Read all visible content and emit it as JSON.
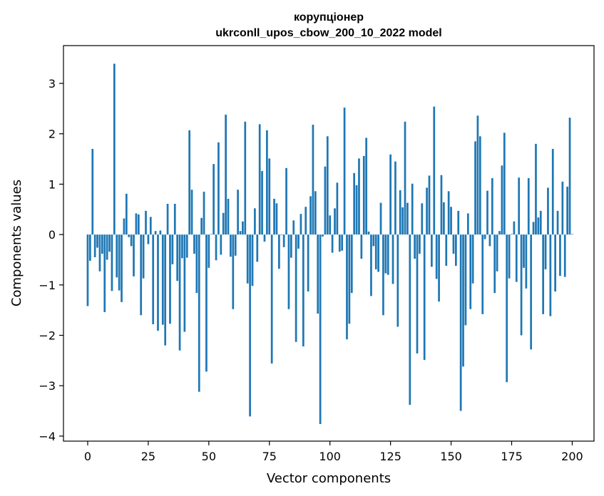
{
  "chart_data": {
    "type": "bar",
    "title": "корупціонер",
    "subtitle": "ukrconll_upos_cbow_200_10_2022 model",
    "xlabel": "Vector components",
    "ylabel": "Components values",
    "xlim": [
      -10,
      209
    ],
    "ylim": [
      -4.1,
      3.75
    ],
    "xticks": [
      0,
      25,
      50,
      75,
      100,
      125,
      150,
      175,
      200
    ],
    "yticks": [
      -4,
      -3,
      -2,
      -1,
      0,
      1,
      2,
      3
    ],
    "xtick_labels": [
      "0",
      "25",
      "50",
      "75",
      "100",
      "125",
      "150",
      "175",
      "200"
    ],
    "ytick_labels": [
      "−4",
      "−3",
      "−2",
      "−1",
      "0",
      "1",
      "2",
      "3"
    ],
    "bar_color": "#1f77b4",
    "grid": false,
    "values": [
      -1.42,
      -0.52,
      1.7,
      -0.45,
      -0.26,
      -0.73,
      -0.38,
      -1.54,
      -0.5,
      -0.34,
      -1.12,
      3.39,
      -0.85,
      -1.11,
      -1.34,
      0.32,
      0.81,
      -0.05,
      -0.23,
      -0.83,
      0.42,
      0.4,
      -1.6,
      -0.87,
      0.47,
      -0.19,
      0.35,
      -1.78,
      0.07,
      -1.91,
      0.08,
      -1.79,
      -2.2,
      0.61,
      -1.77,
      -0.59,
      0.61,
      -0.92,
      -2.3,
      -0.47,
      -1.93,
      -0.46,
      2.07,
      0.89,
      -0.38,
      -1.16,
      -3.12,
      0.33,
      0.85,
      -2.72,
      -0.66,
      0.01,
      1.4,
      -0.51,
      1.83,
      -0.4,
      0.43,
      2.38,
      0.71,
      -0.44,
      -1.48,
      -0.42,
      0.89,
      0.07,
      0.26,
      2.24,
      -0.97,
      -3.61,
      -1.02,
      0.52,
      -0.54,
      2.19,
      1.26,
      -0.14,
      2.07,
      1.51,
      -2.56,
      0.71,
      0.62,
      -0.68,
      -0.01,
      -0.25,
      1.32,
      -1.48,
      -0.46,
      0.28,
      -2.13,
      -0.28,
      0.41,
      -2.22,
      0.55,
      -1.13,
      0.76,
      2.18,
      0.86,
      -1.57,
      -3.76,
      -0.04,
      1.35,
      1.95,
      0.38,
      -0.36,
      0.52,
      1.03,
      -0.34,
      -0.32,
      2.52,
      -2.08,
      -1.77,
      -1.16,
      1.22,
      0.98,
      1.51,
      -0.48,
      1.56,
      1.92,
      0.06,
      -1.22,
      -0.23,
      -0.69,
      -0.74,
      0.63,
      -1.6,
      -0.77,
      -0.8,
      1.59,
      -0.98,
      1.45,
      -1.83,
      0.88,
      0.54,
      2.24,
      0.63,
      -3.38,
      1.01,
      -0.48,
      -2.36,
      -0.38,
      0.62,
      -2.49,
      0.93,
      1.17,
      -0.64,
      2.54,
      -0.88,
      -1.33,
      1.18,
      0.64,
      -0.62,
      0.86,
      0.55,
      -0.38,
      -0.62,
      0.47,
      -3.5,
      -2.62,
      -1.8,
      0.42,
      -1.48,
      -0.97,
      1.85,
      2.36,
      1.95,
      -1.58,
      -0.09,
      0.87,
      -0.23,
      1.12,
      -1.16,
      -0.73,
      0.07,
      1.37,
      2.02,
      -2.93,
      -0.87,
      0.01,
      0.26,
      -0.94,
      1.13,
      -2.0,
      -0.66,
      -1.07,
      1.12,
      -2.28,
      0.25,
      1.8,
      0.34,
      0.47,
      -1.58,
      -0.69,
      0.93,
      -1.62,
      1.7,
      -1.13,
      0.47,
      -0.82,
      1.05,
      -0.84,
      0.95,
      2.32,
      0.01
    ]
  }
}
